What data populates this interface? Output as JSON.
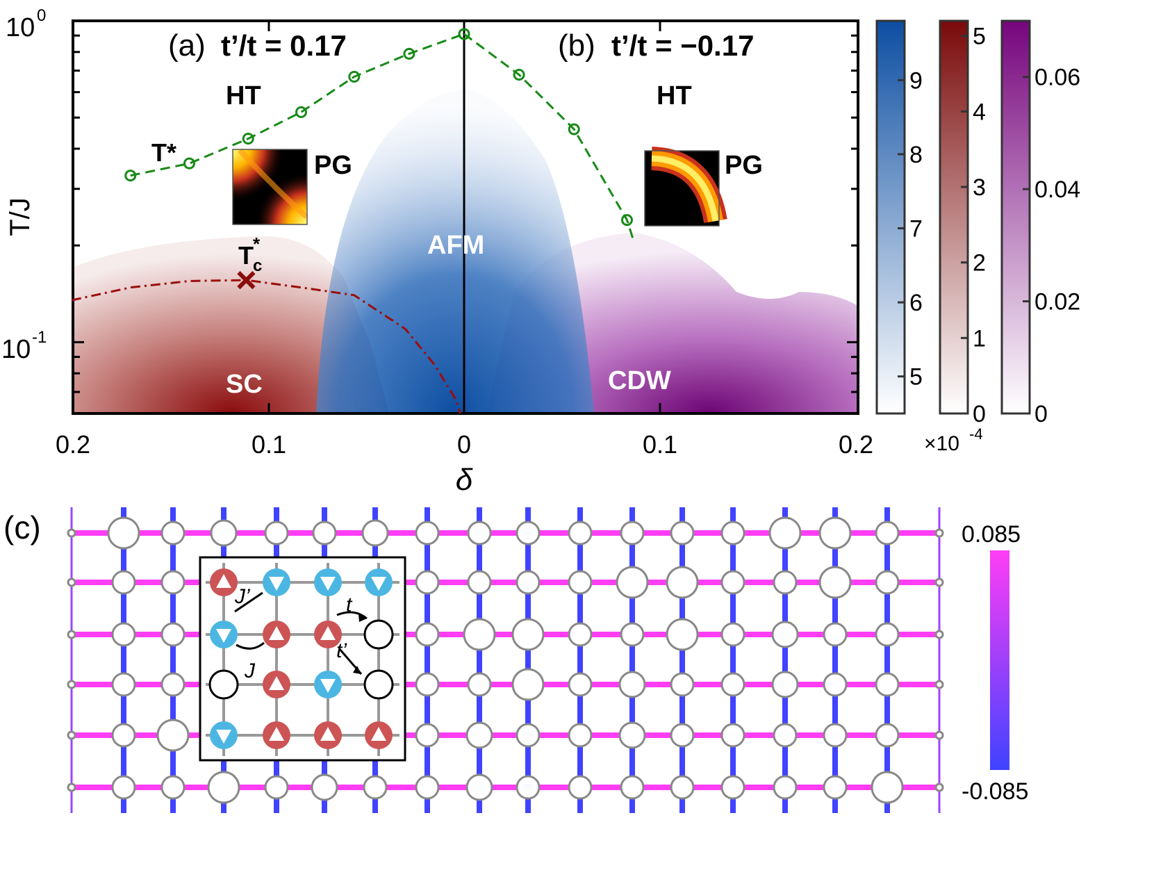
{
  "chart_data": {
    "type": "phase-diagram",
    "xlabel": "δ",
    "ylabel": "T/J",
    "ylim": [
      0.06,
      1.0
    ],
    "x_ticks": [
      "0.2",
      "0.1",
      "0",
      "0.1",
      "0.2"
    ],
    "y_ticks": [
      {
        "base": "10",
        "exp": "0"
      },
      {
        "base": "10",
        "exp": "-1"
      }
    ],
    "panel_a": {
      "title_prefix": "(a)",
      "title": "t’/t = 0.17",
      "regions": [
        "HT",
        "PG",
        "SC"
      ],
      "t_star_label": "T*",
      "tc_star_label": "T",
      "tc_sub": "c",
      "tc_sup": "*",
      "t_star": {
        "delta": [
          0.17,
          0.14,
          0.11,
          0.083,
          0.056,
          0.028,
          0.0
        ],
        "T": [
          0.33,
          0.36,
          0.43,
          0.52,
          0.67,
          0.79,
          0.91
        ]
      },
      "tc": {
        "delta": [
          0.2,
          0.17,
          0.14,
          0.111,
          0.083,
          0.056,
          0.03,
          0.015,
          0.004,
          0.002
        ],
        "T": [
          0.135,
          0.148,
          0.155,
          0.156,
          0.148,
          0.14,
          0.11,
          0.085,
          0.066,
          0.06
        ]
      },
      "tc_max": {
        "delta": 0.111,
        "T": 0.156
      }
    },
    "panel_b": {
      "title_prefix": "(b)",
      "title": "t’/t = −0.17",
      "regions": [
        "HT",
        "PG",
        "CDW"
      ],
      "t_star": {
        "delta": [
          0.0,
          0.028,
          0.056,
          0.083,
          0.086
        ],
        "T": [
          0.91,
          0.68,
          0.46,
          0.24,
          0.21
        ]
      }
    },
    "afm_label": "AFM",
    "colorbars": [
      {
        "name": "AFM",
        "ticks": [
          "5",
          "6",
          "7",
          "8",
          "9"
        ],
        "tick_values": [
          5,
          6,
          7,
          8,
          9
        ],
        "range": [
          4.5,
          9.8
        ],
        "color": "#0d4ea2"
      },
      {
        "name": "SC",
        "ticks": [
          "0",
          "1",
          "2",
          "3",
          "4",
          "5"
        ],
        "tick_values": [
          0,
          1,
          2,
          3,
          4,
          5
        ],
        "range": [
          0,
          5.2
        ],
        "multiplier": "×10",
        "multiplier_exp": "-4",
        "color": "#7a0a0a"
      },
      {
        "name": "CDW",
        "ticks": [
          "0",
          "0.02",
          "0.04",
          "0.06"
        ],
        "tick_values": [
          0,
          0.02,
          0.04,
          0.06
        ],
        "range": [
          0,
          0.07
        ],
        "color": "#76057d"
      }
    ]
  },
  "panel_c": {
    "label": "(c)",
    "colorbar_max": "0.085",
    "colorbar_min": "-0.085",
    "inset_labels": {
      "J_prime": "J’",
      "J": "J",
      "t": "t",
      "t_prime": "t’"
    },
    "colors": {
      "pos": "#ff3df5",
      "neg": "#4043ff",
      "up": "#cc5455",
      "down": "#4cb6e2"
    }
  }
}
